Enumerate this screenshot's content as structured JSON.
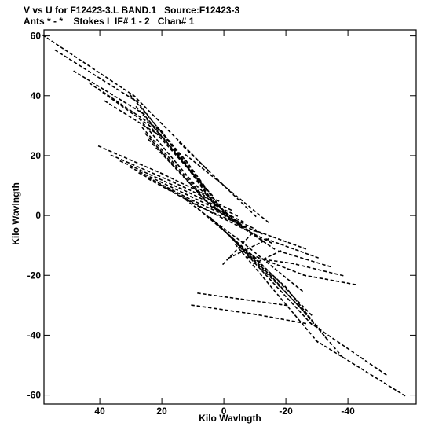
{
  "chart_data": {
    "type": "scatter",
    "title": "V vs U for F12423-3.L BAND.1   Source:F12423-3",
    "subtitle": "Ants * - *    Stokes I  IF# 1 - 2   Chan# 1",
    "xlabel": "Kilo Wavlngth",
    "ylabel": "Kilo Wavlngth",
    "xlim": [
      58,
      -62
    ],
    "ylim": [
      -63,
      62
    ],
    "x_reversed": true,
    "xticks": [
      40,
      20,
      0,
      -20,
      -40
    ],
    "xtick_labels": [
      "40",
      "20",
      "0",
      "-20",
      "-40"
    ],
    "yticks": [
      60,
      40,
      20,
      0,
      -20,
      -40,
      -60
    ],
    "ytick_labels": [
      "60",
      "40",
      "20",
      "0",
      "-20",
      "-40",
      "-60"
    ],
    "grid": false,
    "legend": false,
    "marker_color": "#000000",
    "marker": "short-dash",
    "tracks": [
      {
        "u0": 58,
        "v0": 60,
        "u1": 29,
        "v1": 40,
        "u2": 5,
        "v2": 15
      },
      {
        "u0": 54,
        "v0": 55,
        "u1": 28,
        "v1": 38,
        "u2": 8,
        "v2": 12
      },
      {
        "u0": 48,
        "v0": 48,
        "u1": 26,
        "v1": 34,
        "u2": 6,
        "v2": 9
      },
      {
        "u0": 43,
        "v0": 44,
        "u1": 24,
        "v1": 30,
        "u2": 4,
        "v2": 7
      },
      {
        "u0": 40,
        "v0": 42,
        "u1": 20,
        "v1": 28,
        "u2": 3,
        "v2": 4
      },
      {
        "u0": 38,
        "v0": 38,
        "u1": 18,
        "v1": 25,
        "u2": 2,
        "v2": 2
      },
      {
        "u0": 30,
        "v0": 40,
        "u1": 12,
        "v1": 18,
        "u2": 0,
        "v2": 1
      },
      {
        "u0": 28,
        "v0": 36,
        "u1": 10,
        "v1": 14,
        "u2": -2,
        "v2": -1
      },
      {
        "u0": 27,
        "v0": 32,
        "u1": 10,
        "v1": 11,
        "u2": -5,
        "v2": -3
      },
      {
        "u0": 26,
        "v0": 29,
        "u1": 8,
        "v1": 8,
        "u2": -8,
        "v2": -5
      },
      {
        "u0": 25,
        "v0": 27,
        "u1": 6,
        "v1": 5,
        "u2": -12,
        "v2": -8
      },
      {
        "u0": 24,
        "v0": 25,
        "u1": 4,
        "v1": 3,
        "u2": -16,
        "v2": -11
      },
      {
        "u0": 40,
        "v0": 23,
        "u1": 20,
        "v1": 14,
        "u2": 2,
        "v2": 5
      },
      {
        "u0": 36,
        "v0": 20,
        "u1": 16,
        "v1": 11,
        "u2": -2,
        "v2": 2
      },
      {
        "u0": 33,
        "v0": 18,
        "u1": 14,
        "v1": 9,
        "u2": -4,
        "v2": 0
      },
      {
        "u0": 30,
        "v0": 16,
        "u1": 12,
        "v1": 7,
        "u2": -6,
        "v2": -2
      },
      {
        "u0": 27,
        "v0": 14,
        "u1": 10,
        "v1": 5,
        "u2": -9,
        "v2": -4
      },
      {
        "u0": 24,
        "v0": 12,
        "u1": 8,
        "v1": 3,
        "u2": -12,
        "v2": -6
      },
      {
        "u0": 20,
        "v0": 10,
        "u1": 4,
        "v1": 1,
        "u2": -15,
        "v2": -9
      },
      {
        "u0": 12,
        "v0": 5,
        "u1": -6,
        "v1": -9,
        "u2": -25,
        "v2": -25
      },
      {
        "u0": 8,
        "v0": 2,
        "u1": -10,
        "v1": -14,
        "u2": -28,
        "v2": -33
      },
      {
        "u0": 4,
        "v0": -1,
        "u1": -15,
        "v1": -20,
        "u2": -31,
        "v2": -38
      },
      {
        "u0": 2,
        "v0": -3,
        "u1": -20,
        "v1": -24,
        "u2": -33,
        "v2": -41
      },
      {
        "u0": 0,
        "v0": -5,
        "u1": -24,
        "v1": -30,
        "u2": -38,
        "v2": -47
      },
      {
        "u0": -2,
        "v0": -7,
        "u1": -28,
        "v1": -36,
        "u2": -52,
        "v2": -53
      },
      {
        "u0": -4,
        "v0": -10,
        "u1": -30,
        "v1": -42,
        "u2": -58,
        "v2": -60
      },
      {
        "u0": -6,
        "v0": -12,
        "u1": -26,
        "v1": -20,
        "u2": -42,
        "v2": -23
      },
      {
        "u0": -8,
        "v0": -14,
        "u1": -22,
        "v1": -16,
        "u2": -38,
        "v2": -20
      },
      {
        "u0": -10,
        "v0": -16,
        "u1": -18,
        "v1": -12,
        "u2": -34,
        "v2": -17
      },
      {
        "u0": -2,
        "v0": -14,
        "u1": -14,
        "v1": -8,
        "u2": -30,
        "v2": -14
      },
      {
        "u0": 0,
        "v0": -16,
        "u1": -10,
        "v1": -5,
        "u2": -26,
        "v2": -11
      },
      {
        "u0": 12,
        "v0": 20,
        "u1": 0,
        "v1": 10,
        "u2": -14,
        "v2": -2
      },
      {
        "u0": 14,
        "v0": 24,
        "u1": 2,
        "v1": 12,
        "u2": -10,
        "v2": 0
      },
      {
        "u0": 8,
        "v0": -26,
        "u1": -6,
        "v1": -28,
        "u2": -20,
        "v2": -30
      },
      {
        "u0": 10,
        "v0": -30,
        "u1": -10,
        "v1": -33,
        "u2": -26,
        "v2": -36
      }
    ]
  }
}
